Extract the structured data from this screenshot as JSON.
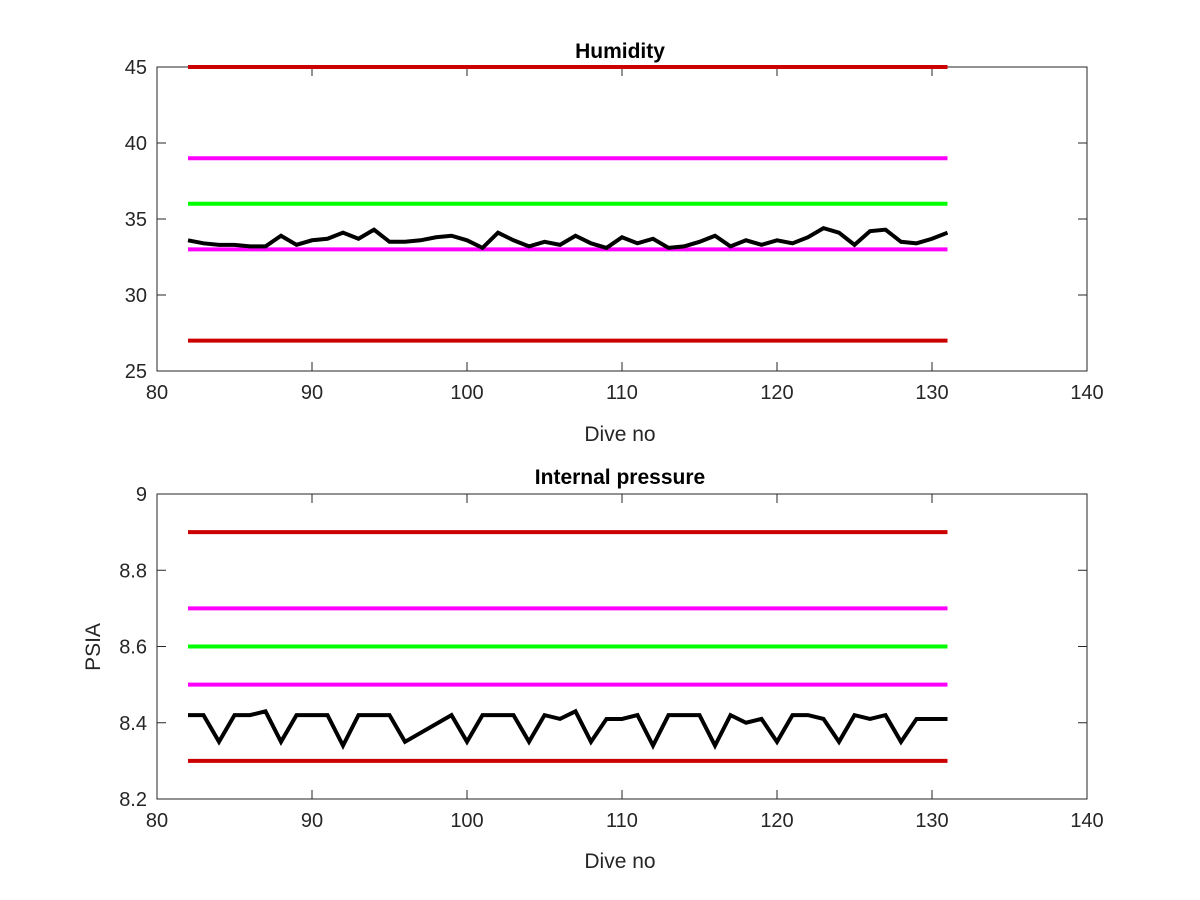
{
  "chart_data": [
    {
      "type": "line",
      "title": "Humidity",
      "xlabel": "Dive no",
      "ylabel": "",
      "xlim": [
        80,
        140
      ],
      "ylim": [
        25,
        45
      ],
      "xticks": [
        "80",
        "90",
        "100",
        "110",
        "120",
        "130",
        "140"
      ],
      "yticks": [
        "25",
        "30",
        "35",
        "40",
        "45"
      ],
      "grid": false,
      "legend": null,
      "thresholds": [
        {
          "y": 45,
          "x": [
            82,
            131
          ],
          "color": "#cc0000"
        },
        {
          "y": 39,
          "x": [
            82,
            131
          ],
          "color": "#ff00ff"
        },
        {
          "y": 36,
          "x": [
            82,
            131
          ],
          "color": "#00ff00"
        },
        {
          "y": 33,
          "x": [
            82,
            131
          ],
          "color": "#ff00ff"
        },
        {
          "y": 27,
          "x": [
            82,
            131
          ],
          "color": "#cc0000"
        }
      ],
      "series": [
        {
          "color": "#000000",
          "x": [
            82,
            83,
            84,
            85,
            86,
            87,
            88,
            89,
            90,
            91,
            92,
            93,
            94,
            95,
            96,
            97,
            98,
            99,
            100,
            101,
            102,
            103,
            104,
            105,
            106,
            107,
            108,
            109,
            110,
            111,
            112,
            113,
            114,
            115,
            116,
            117,
            118,
            119,
            120,
            121,
            122,
            123,
            124,
            125,
            126,
            127,
            128,
            129,
            130,
            131
          ],
          "values": [
            33.6,
            33.4,
            33.3,
            33.3,
            33.2,
            33.2,
            33.9,
            33.3,
            33.6,
            33.7,
            34.1,
            33.7,
            34.3,
            33.5,
            33.5,
            33.6,
            33.8,
            33.9,
            33.6,
            33.1,
            34.1,
            33.6,
            33.2,
            33.5,
            33.3,
            33.9,
            33.4,
            33.1,
            33.8,
            33.4,
            33.7,
            33.1,
            33.2,
            33.5,
            33.9,
            33.2,
            33.6,
            33.3,
            33.6,
            33.4,
            33.8,
            34.4,
            34.1,
            33.3,
            34.2,
            34.3,
            33.5,
            33.4,
            33.7,
            34.1
          ]
        }
      ]
    },
    {
      "type": "line",
      "title": "Internal pressure",
      "xlabel": "Dive no",
      "ylabel": "PSIA",
      "xlim": [
        80,
        140
      ],
      "ylim": [
        8.2,
        9.0
      ],
      "xticks": [
        "80",
        "90",
        "100",
        "110",
        "120",
        "130",
        "140"
      ],
      "yticks": [
        "8.2",
        "8.4",
        "8.6",
        "8.8",
        "9"
      ],
      "grid": false,
      "legend": null,
      "thresholds": [
        {
          "y": 8.9,
          "x": [
            82,
            131
          ],
          "color": "#cc0000"
        },
        {
          "y": 8.7,
          "x": [
            82,
            131
          ],
          "color": "#ff00ff"
        },
        {
          "y": 8.6,
          "x": [
            82,
            131
          ],
          "color": "#00ff00"
        },
        {
          "y": 8.5,
          "x": [
            82,
            131
          ],
          "color": "#ff00ff"
        },
        {
          "y": 8.3,
          "x": [
            82,
            131
          ],
          "color": "#cc0000"
        }
      ],
      "series": [
        {
          "color": "#000000",
          "x": [
            82,
            83,
            84,
            85,
            86,
            87,
            88,
            89,
            90,
            91,
            92,
            93,
            94,
            95,
            96,
            99,
            100,
            101,
            102,
            103,
            104,
            105,
            106,
            107,
            108,
            109,
            110,
            111,
            112,
            113,
            114,
            115,
            116,
            117,
            118,
            119,
            120,
            121,
            122,
            123,
            124,
            125,
            126,
            127,
            128,
            129,
            130,
            131
          ],
          "values": [
            8.42,
            8.42,
            8.35,
            8.42,
            8.42,
            8.43,
            8.35,
            8.42,
            8.42,
            8.42,
            8.34,
            8.42,
            8.42,
            8.42,
            8.35,
            8.42,
            8.35,
            8.42,
            8.42,
            8.42,
            8.35,
            8.42,
            8.41,
            8.43,
            8.35,
            8.41,
            8.41,
            8.42,
            8.34,
            8.42,
            8.42,
            8.42,
            8.34,
            8.42,
            8.4,
            8.41,
            8.35,
            8.42,
            8.42,
            8.41,
            8.35,
            8.42,
            8.41,
            8.42,
            8.35,
            8.41,
            8.41,
            8.41
          ]
        }
      ]
    }
  ]
}
